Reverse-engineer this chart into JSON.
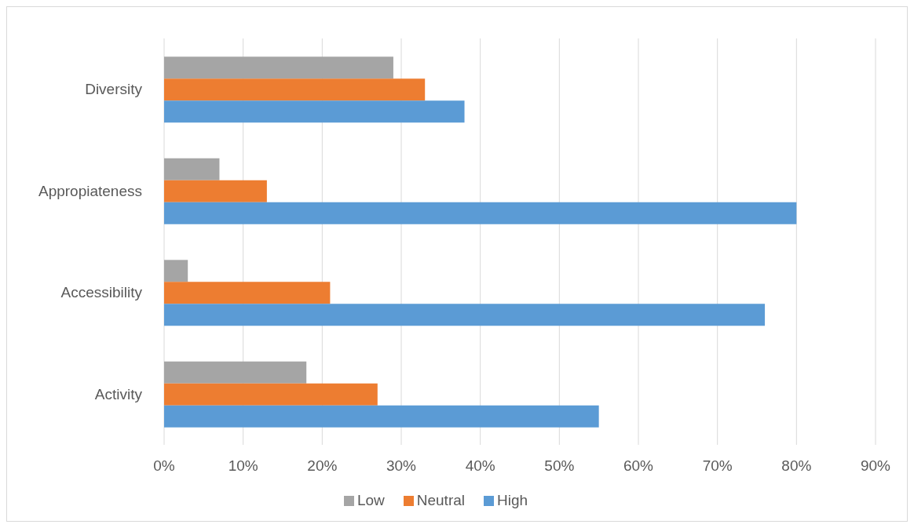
{
  "chart_data": {
    "type": "bar",
    "orientation": "horizontal",
    "categories": [
      "Diversity",
      "Appropiateness",
      "Accessibility",
      "Activity"
    ],
    "series": [
      {
        "name": "Low",
        "color": "#a5a5a5",
        "values": [
          29,
          7,
          3,
          18
        ]
      },
      {
        "name": "Neutral",
        "color": "#ed7d31",
        "values": [
          33,
          13,
          21,
          27
        ]
      },
      {
        "name": "High",
        "color": "#5b9bd5",
        "values": [
          38,
          80,
          76,
          55
        ]
      }
    ],
    "xlim": [
      0,
      90
    ],
    "xticks": [
      {
        "value": 0,
        "label": "0%"
      },
      {
        "value": 10,
        "label": "10%"
      },
      {
        "value": 20,
        "label": "20%"
      },
      {
        "value": 30,
        "label": "30%"
      },
      {
        "value": 40,
        "label": "40%"
      },
      {
        "value": 50,
        "label": "50%"
      },
      {
        "value": 60,
        "label": "60%"
      },
      {
        "value": 70,
        "label": "70%"
      },
      {
        "value": 80,
        "label": "80%"
      },
      {
        "value": 90,
        "label": "90%"
      }
    ],
    "grid": "x",
    "legend": "bottom"
  }
}
